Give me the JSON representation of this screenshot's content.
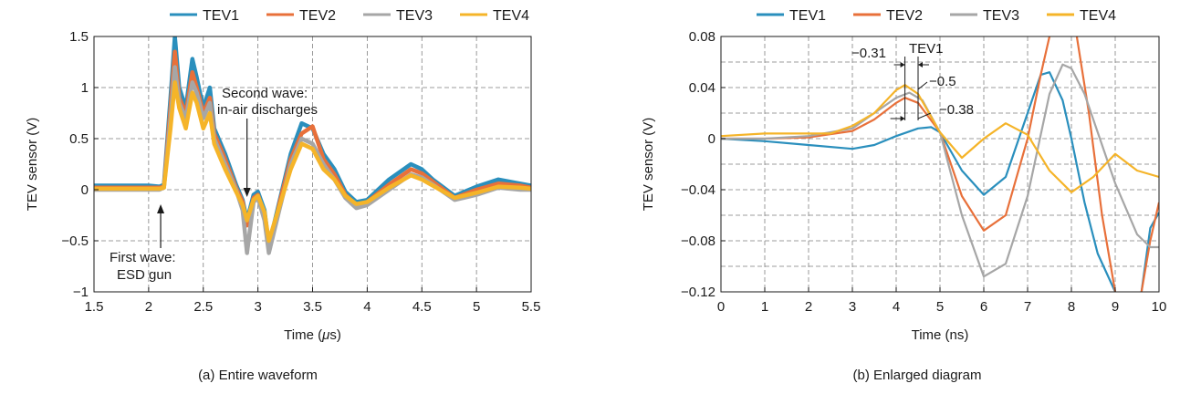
{
  "colors": {
    "TEV1": "#2a8fbd",
    "TEV2": "#e8703a",
    "TEV3": "#a6a6a6",
    "TEV4": "#f5b429",
    "grid": "#7f7f7f"
  },
  "chart_data": [
    {
      "type": "line",
      "caption": "(a) Entire waveform",
      "xlabel_pre": "Time (",
      "xlabel_mu": "μ",
      "xlabel_post": "s)",
      "ylabel": "TEV sensor (V)",
      "xlim": [
        1.5,
        5.5
      ],
      "ylim": [
        -1,
        1.5
      ],
      "xticks": [
        1.5,
        2,
        2.5,
        3,
        3.5,
        4,
        4.5,
        5,
        5.5
      ],
      "xtick_labels": [
        "1.5",
        "2",
        "2.5",
        "3",
        "3.5",
        "4",
        "4.5",
        "5",
        "5.5"
      ],
      "yticks": [
        -1,
        -0.5,
        0,
        0.5,
        1,
        1.5
      ],
      "ytick_labels": [
        "−1",
        "−0.5",
        "0",
        "0.5",
        "1",
        "1.5"
      ],
      "grid": true,
      "legend_position": "top",
      "legend": [
        "TEV1",
        "TEV2",
        "TEV3",
        "TEV4"
      ],
      "series": [
        {
          "name": "TEV1",
          "x": [
            1.5,
            2.0,
            2.1,
            2.14,
            2.2,
            2.24,
            2.28,
            2.34,
            2.4,
            2.44,
            2.5,
            2.56,
            2.6,
            2.7,
            2.8,
            2.86,
            2.9,
            2.96,
            3.0,
            3.06,
            3.1,
            3.2,
            3.3,
            3.4,
            3.5,
            3.6,
            3.7,
            3.8,
            3.9,
            4.0,
            4.2,
            4.4,
            4.5,
            4.6,
            4.8,
            5.0,
            5.2,
            5.4,
            5.5
          ],
          "y": [
            0.04,
            0.04,
            0.03,
            0.05,
            0.9,
            1.5,
            1.0,
            0.8,
            1.28,
            1.1,
            0.8,
            1.0,
            0.6,
            0.35,
            0.05,
            -0.1,
            -0.3,
            -0.05,
            -0.02,
            -0.2,
            -0.55,
            -0.1,
            0.35,
            0.65,
            0.6,
            0.35,
            0.2,
            -0.02,
            -0.12,
            -0.1,
            0.1,
            0.25,
            0.2,
            0.1,
            -0.06,
            0.03,
            0.1,
            0.06,
            0.04
          ]
        },
        {
          "name": "TEV2",
          "x": [
            1.5,
            2.0,
            2.1,
            2.14,
            2.2,
            2.24,
            2.28,
            2.34,
            2.4,
            2.44,
            2.5,
            2.56,
            2.6,
            2.7,
            2.8,
            2.86,
            2.9,
            2.96,
            3.0,
            3.06,
            3.1,
            3.2,
            3.3,
            3.4,
            3.5,
            3.6,
            3.7,
            3.8,
            3.9,
            4.0,
            4.2,
            4.4,
            4.5,
            4.6,
            4.8,
            5.0,
            5.2,
            5.4,
            5.5
          ],
          "y": [
            0.02,
            0.02,
            0.02,
            0.03,
            0.8,
            1.35,
            0.9,
            0.75,
            1.15,
            1.0,
            0.75,
            0.9,
            0.55,
            0.3,
            0.02,
            -0.12,
            -0.35,
            -0.08,
            -0.05,
            -0.25,
            -0.6,
            -0.12,
            0.3,
            0.55,
            0.62,
            0.3,
            0.15,
            -0.05,
            -0.15,
            -0.12,
            0.05,
            0.2,
            0.16,
            0.08,
            -0.08,
            0.0,
            0.06,
            0.04,
            0.02
          ]
        },
        {
          "name": "TEV3",
          "x": [
            1.5,
            2.0,
            2.1,
            2.14,
            2.2,
            2.24,
            2.28,
            2.34,
            2.4,
            2.44,
            2.5,
            2.56,
            2.6,
            2.7,
            2.8,
            2.86,
            2.9,
            2.96,
            3.0,
            3.06,
            3.1,
            3.2,
            3.3,
            3.4,
            3.5,
            3.6,
            3.7,
            3.8,
            3.9,
            4.0,
            4.2,
            4.4,
            4.5,
            4.6,
            4.8,
            5.0,
            5.2,
            5.4,
            5.5
          ],
          "y": [
            0.0,
            0.0,
            0.0,
            0.02,
            0.7,
            1.2,
            0.85,
            0.7,
            1.05,
            0.95,
            0.7,
            0.85,
            0.5,
            0.25,
            0.0,
            -0.2,
            -0.62,
            -0.12,
            -0.08,
            -0.3,
            -0.62,
            -0.18,
            0.25,
            0.5,
            0.45,
            0.25,
            0.1,
            -0.08,
            -0.18,
            -0.15,
            0.0,
            0.15,
            0.12,
            0.05,
            -0.1,
            -0.05,
            0.02,
            0.0,
            0.0
          ]
        },
        {
          "name": "TEV4",
          "x": [
            1.5,
            2.0,
            2.1,
            2.14,
            2.2,
            2.24,
            2.28,
            2.34,
            2.4,
            2.44,
            2.5,
            2.56,
            2.6,
            2.7,
            2.8,
            2.86,
            2.9,
            2.96,
            3.0,
            3.06,
            3.1,
            3.2,
            3.3,
            3.4,
            3.5,
            3.6,
            3.7,
            3.8,
            3.9,
            4.0,
            4.2,
            4.4,
            4.5,
            4.6,
            4.8,
            5.0,
            5.2,
            5.4,
            5.5
          ],
          "y": [
            0.01,
            0.01,
            0.01,
            0.02,
            0.6,
            1.05,
            0.8,
            0.6,
            0.95,
            0.85,
            0.6,
            0.75,
            0.45,
            0.2,
            -0.02,
            -0.15,
            -0.3,
            -0.1,
            -0.06,
            -0.22,
            -0.5,
            -0.15,
            0.2,
            0.45,
            0.4,
            0.2,
            0.1,
            -0.06,
            -0.14,
            -0.12,
            0.02,
            0.14,
            0.1,
            0.04,
            -0.08,
            -0.03,
            0.03,
            0.02,
            0.01
          ]
        }
      ],
      "annotations": [
        {
          "lines": [
            "Second wave:",
            "in-air discharges"
          ],
          "points_to": [
            2.9,
            0.05
          ]
        },
        {
          "lines": [
            "First wave:",
            "ESD gun"
          ],
          "points_to": [
            2.11,
            -0.15
          ]
        }
      ]
    },
    {
      "type": "line",
      "caption": "(b) Enlarged diagram",
      "xlabel": "Time (ns)",
      "ylabel": "TEV sensor (V)",
      "xlim": [
        0,
        10
      ],
      "ylim": [
        -0.12,
        0.08
      ],
      "xticks": [
        0,
        1,
        2,
        3,
        4,
        5,
        6,
        7,
        8,
        9,
        10
      ],
      "xtick_labels": [
        "0",
        "1",
        "2",
        "3",
        "4",
        "5",
        "6",
        "7",
        "8",
        "9",
        "10"
      ],
      "yticks": [
        -0.12,
        -0.08,
        -0.04,
        0,
        0.04,
        0.08
      ],
      "ytick_labels": [
        "−0.12",
        "−0.08",
        "−0.04",
        "0",
        "0.04",
        "0.08"
      ],
      "grid": true,
      "legend_position": "top",
      "legend": [
        "TEV1",
        "TEV2",
        "TEV3",
        "TEV4"
      ],
      "series": [
        {
          "name": "TEV1",
          "x": [
            0,
            1,
            2,
            3,
            3.5,
            4,
            4.5,
            4.8,
            5,
            5.5,
            6,
            6.5,
            7,
            7.3,
            7.5,
            7.8,
            8,
            8.3,
            8.6,
            9,
            9.3,
            9.6,
            9.8,
            10
          ],
          "y": [
            0,
            -0.002,
            -0.005,
            -0.008,
            -0.005,
            0.002,
            0.008,
            0.009,
            0.005,
            -0.025,
            -0.044,
            -0.03,
            0.02,
            0.05,
            0.052,
            0.03,
            0.0,
            -0.05,
            -0.09,
            -0.12,
            -0.135,
            -0.12,
            -0.07,
            -0.058
          ]
        },
        {
          "name": "TEV2",
          "x": [
            0,
            1,
            2,
            3,
            3.5,
            4,
            4.2,
            4.5,
            5,
            5.5,
            6,
            6.5,
            7,
            7.3,
            7.5,
            7.8,
            8.1,
            8.4,
            8.7,
            9,
            9.3,
            9.6,
            9.8,
            10
          ],
          "y": [
            0,
            0.0,
            0.001,
            0.006,
            0.015,
            0.028,
            0.032,
            0.028,
            0.005,
            -0.045,
            -0.072,
            -0.06,
            0.0,
            0.05,
            0.08,
            0.1,
            0.085,
            0.02,
            -0.06,
            -0.12,
            -0.15,
            -0.12,
            -0.08,
            -0.05
          ]
        },
        {
          "name": "TEV3",
          "x": [
            0,
            1,
            2,
            3,
            3.5,
            4,
            4.3,
            4.6,
            5,
            5.5,
            6,
            6.5,
            7,
            7.5,
            7.8,
            8,
            8.3,
            8.6,
            9,
            9.5,
            9.8,
            10
          ],
          "y": [
            0,
            0.0,
            0.002,
            0.008,
            0.02,
            0.032,
            0.036,
            0.03,
            0.005,
            -0.06,
            -0.108,
            -0.098,
            -0.045,
            0.035,
            0.058,
            0.055,
            0.035,
            0.005,
            -0.035,
            -0.075,
            -0.085,
            -0.085
          ]
        },
        {
          "name": "TEV4",
          "x": [
            0,
            1,
            2,
            2.5,
            3,
            3.5,
            4,
            4.2,
            4.5,
            5,
            5.5,
            6,
            6.5,
            7,
            7.5,
            8,
            8.5,
            9,
            9.5,
            10
          ],
          "y": [
            0.002,
            0.004,
            0.004,
            0.004,
            0.01,
            0.02,
            0.038,
            0.042,
            0.035,
            0.005,
            -0.015,
            0.0,
            0.012,
            0.003,
            -0.025,
            -0.042,
            -0.03,
            -0.012,
            -0.025,
            -0.03
          ]
        }
      ],
      "annotations": [
        {
          "text": "TEV1"
        },
        {
          "text": "−0.31"
        },
        {
          "text": "−0.5"
        },
        {
          "text": "−0.38"
        }
      ]
    }
  ]
}
